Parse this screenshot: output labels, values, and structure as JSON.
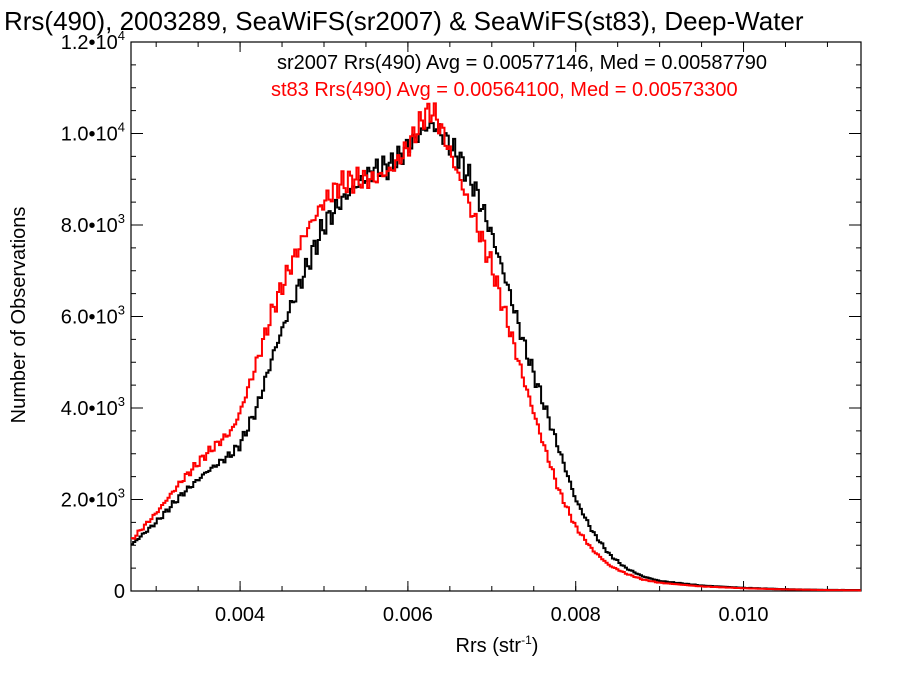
{
  "chart_data": {
    "type": "line",
    "title": "Rrs(490), 2003289, SeaWiFS(sr2007) & SeaWiFS(st83), Deep-Water",
    "xlabel_main": "Rrs (str",
    "xlabel_sup": "-1",
    "xlabel_tail": ")",
    "ylabel": "Number of Observations",
    "xlim": [
      0.0027,
      0.0114
    ],
    "ylim": [
      0,
      12000
    ],
    "x_ticks": [
      {
        "value": 0.004,
        "label": "0.004"
      },
      {
        "value": 0.006,
        "label": "0.006"
      },
      {
        "value": 0.008,
        "label": "0.008"
      },
      {
        "value": 0.01,
        "label": "0.010"
      }
    ],
    "y_ticks": [
      {
        "value": 0,
        "base": "0",
        "exp": ""
      },
      {
        "value": 2000,
        "base": "2.0•10",
        "exp": "3"
      },
      {
        "value": 4000,
        "base": "4.0•10",
        "exp": "3"
      },
      {
        "value": 6000,
        "base": "6.0•10",
        "exp": "3"
      },
      {
        "value": 8000,
        "base": "8.0•10",
        "exp": "3"
      },
      {
        "value": 10000,
        "base": "1.0•10",
        "exp": "4"
      },
      {
        "value": 12000,
        "base": "1.2•10",
        "exp": "4"
      }
    ],
    "series": [
      {
        "name": "sr2007",
        "color": "#000000",
        "annotation": "sr2007 Rrs(490) Avg = 0.00577146, Med = 0.00587790",
        "x": [
          0.0027,
          0.003,
          0.0033,
          0.0036,
          0.0039,
          0.004,
          0.0042,
          0.0044,
          0.0046,
          0.0048,
          0.005,
          0.0052,
          0.0054,
          0.0056,
          0.0058,
          0.006,
          0.0062,
          0.0063,
          0.0064,
          0.0066,
          0.0068,
          0.007,
          0.0072,
          0.0074,
          0.0076,
          0.0078,
          0.008,
          0.0082,
          0.0084,
          0.0086,
          0.0088,
          0.009,
          0.0095,
          0.01,
          0.0105,
          0.011,
          0.0114
        ],
        "y": [
          1000,
          1500,
          2100,
          2600,
          3000,
          3200,
          4000,
          5200,
          6200,
          7100,
          8000,
          8500,
          8900,
          9200,
          9300,
          9700,
          10100,
          10200,
          10000,
          9500,
          8800,
          7800,
          6600,
          5300,
          4200,
          3100,
          2000,
          1300,
          800,
          500,
          320,
          220,
          120,
          70,
          40,
          25,
          20
        ]
      },
      {
        "name": "st83",
        "color": "#ff0000",
        "annotation": "st83 Rrs(490) Avg = 0.00564100, Med = 0.00573300",
        "x": [
          0.0027,
          0.003,
          0.0033,
          0.0036,
          0.0039,
          0.004,
          0.0042,
          0.0044,
          0.0046,
          0.0048,
          0.005,
          0.0052,
          0.0054,
          0.0056,
          0.0058,
          0.006,
          0.0062,
          0.0063,
          0.0064,
          0.0066,
          0.0068,
          0.007,
          0.0072,
          0.0074,
          0.0076,
          0.0078,
          0.008,
          0.0082,
          0.0084,
          0.0086,
          0.0088,
          0.009,
          0.0095,
          0.01,
          0.0105,
          0.011,
          0.0114
        ],
        "y": [
          1100,
          1700,
          2400,
          3000,
          3500,
          3900,
          5000,
          6200,
          7100,
          7900,
          8500,
          8900,
          9000,
          9000,
          9200,
          9700,
          10400,
          10500,
          10100,
          9100,
          8100,
          7100,
          5800,
          4500,
          3300,
          2200,
          1400,
          900,
          560,
          380,
          250,
          180,
          100,
          60,
          35,
          20,
          15
        ]
      }
    ]
  }
}
